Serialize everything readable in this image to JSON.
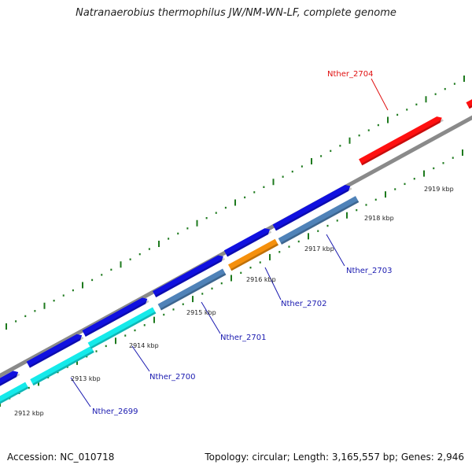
{
  "title": "Natranaerobius thermophilus JW/NM-WN-LF, complete genome",
  "footer": {
    "accession": "Accession: NC_010718",
    "stats": "Topology: circular; Length: 3,165,557 bp; Genes: 2,946"
  },
  "colors": {
    "backbone": "#8a8a8a",
    "tick": "#1e7a1e",
    "plus_cds": "#1010e0",
    "minus_cds_cyan": "#15eaea",
    "minus_cds_steel": "#4f82b8",
    "minus_cds_orange": "#f5900c",
    "highlight_red": "#ff1010",
    "label_blue": "#1a1ab0",
    "label_red": "#e01010"
  },
  "scale_labels": [
    "2912 kbp",
    "2913 kbp",
    "2914 kbp",
    "2915 kbp",
    "2916 kbp",
    "2917 kbp",
    "2918 kbp",
    "2919 kbp"
  ],
  "gene_labels": [
    {
      "text": "Nther_2699",
      "color": "label_blue"
    },
    {
      "text": "Nther_2700",
      "color": "label_blue"
    },
    {
      "text": "Nther_2701",
      "color": "label_blue"
    },
    {
      "text": "Nther_2702",
      "color": "label_blue"
    },
    {
      "text": "Nther_2703",
      "color": "label_blue"
    },
    {
      "text": "Nther_2704",
      "color": "label_red"
    }
  ]
}
